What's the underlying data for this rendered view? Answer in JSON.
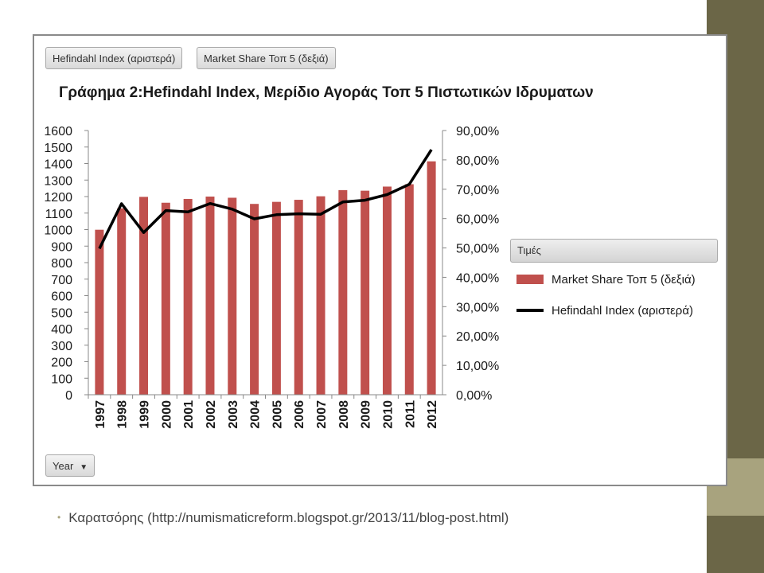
{
  "filters": {
    "hefindahl_button": "Hefindahl Index (αριστερά)",
    "market_share_button": "Market Share Τοπ 5 (δεξιά)",
    "year_button": "Year"
  },
  "legend": {
    "header": "Τιμές",
    "bar_label": "Market Share Τοπ 5 (δεξιά)",
    "line_label": "Hefindahl Index (αριστερά)"
  },
  "note": "Καρατσόρης (http://numismaticreform.blogspot.gr/2013/11/blog-post.html)",
  "colors": {
    "bar": "#c0504d",
    "line": "#000000",
    "side_band": "#6b6647",
    "side_accent": "#a8a37e"
  },
  "chart_data": {
    "type": "bar+line",
    "title": "Γράφημα 2:Hefindahl Index, Μερίδιο Αγοράς Τοπ 5 Πιστωτικών Ιδρυματων",
    "categories": [
      "1997",
      "1998",
      "1999",
      "2000",
      "2001",
      "2002",
      "2003",
      "2004",
      "2005",
      "2006",
      "2007",
      "2008",
      "2009",
      "2010",
      "2011",
      "2012"
    ],
    "series": [
      {
        "name": "Market Share Τοπ 5 (δεξιά)",
        "type": "bar",
        "axis": "right",
        "values": [
          56.2,
          63.5,
          67.4,
          65.4,
          66.7,
          67.5,
          67.1,
          65.0,
          65.7,
          66.4,
          67.6,
          69.7,
          69.5,
          70.9,
          71.7,
          79.5
        ]
      },
      {
        "name": "Hefindahl Index (αριστερά)",
        "type": "line",
        "axis": "left",
        "values": [
          885,
          1157,
          982,
          1115,
          1107,
          1158,
          1124,
          1065,
          1090,
          1096,
          1093,
          1167,
          1178,
          1212,
          1274,
          1484
        ]
      }
    ],
    "left_axis": {
      "ylim": [
        0,
        1600
      ],
      "ticks": [
        "0",
        "100",
        "200",
        "300",
        "400",
        "500",
        "600",
        "700",
        "800",
        "900",
        "1000",
        "1100",
        "1200",
        "1300",
        "1400",
        "1500",
        "1600"
      ]
    },
    "right_axis": {
      "ylim": [
        0,
        90
      ],
      "ticks": [
        "0,00%",
        "10,00%",
        "20,00%",
        "30,00%",
        "40,00%",
        "50,00%",
        "60,00%",
        "70,00%",
        "80,00%",
        "90,00%"
      ]
    },
    "legend_position": "right"
  }
}
